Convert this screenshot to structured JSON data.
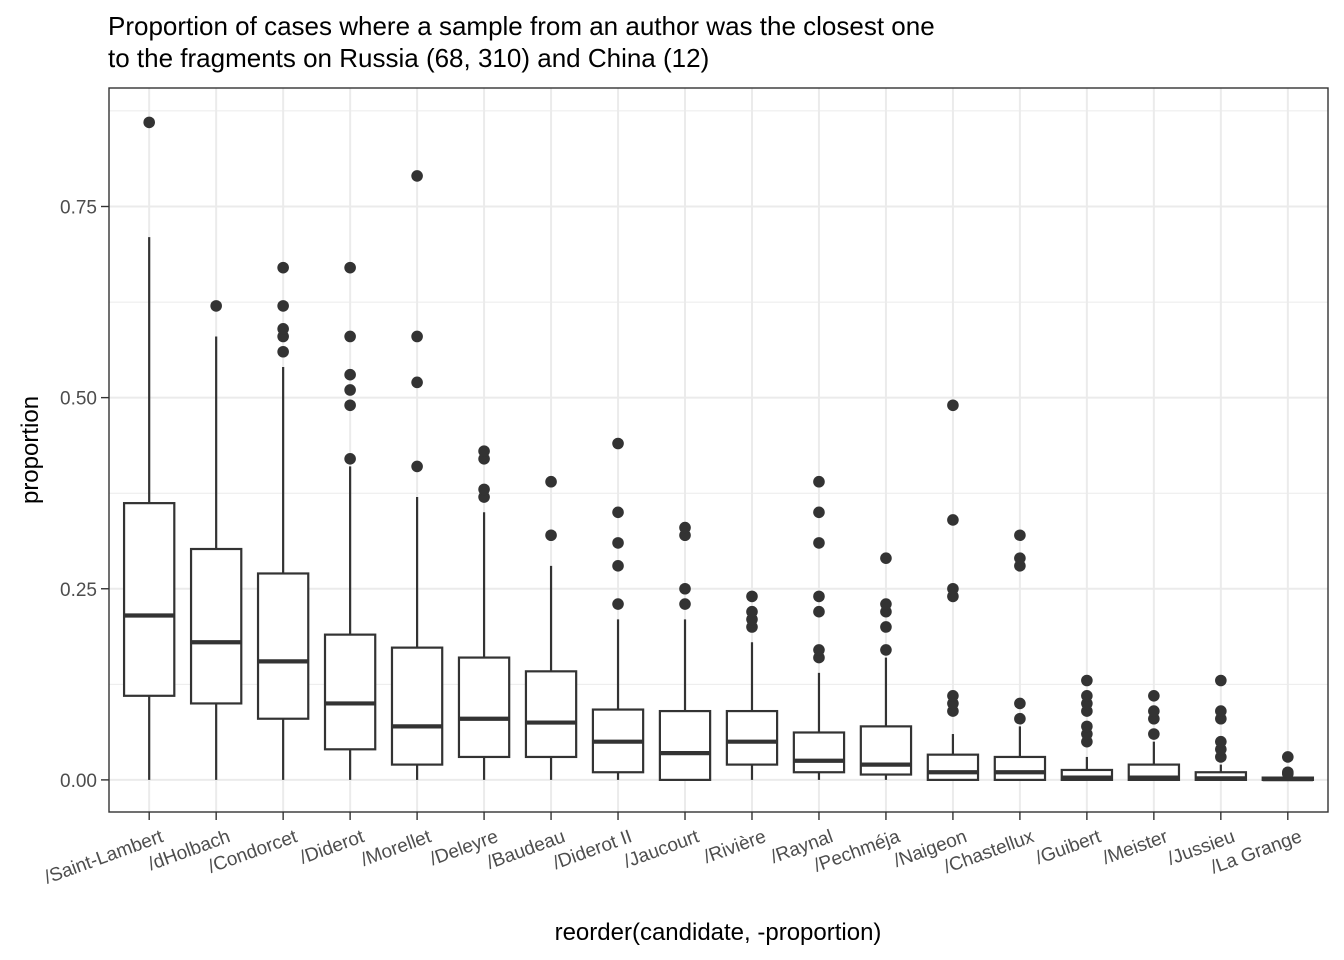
{
  "chart_data": {
    "type": "boxplot",
    "title_lines": [
      "Proportion of cases where a sample from an author was the closest one",
      "to the fragments on Russia (68, 310) and China (12)"
    ],
    "xlabel": "reorder(candidate, -proportion)",
    "ylabel": "proportion",
    "ylim": [
      -0.042,
      0.905
    ],
    "yticks": [
      0.0,
      0.25,
      0.5,
      0.75
    ],
    "ytick_labels": [
      "0.00",
      "0.25",
      "0.50",
      "0.75"
    ],
    "grid": true,
    "box_color": "#333333",
    "point_color": "#333333",
    "categories": [
      "/Saint-Lambert",
      "/dHolbach",
      "/Condorcet",
      "/Diderot",
      "/Morellet",
      "/Deleyre",
      "/Baudeau",
      "/Diderot II",
      "/Jaucourt",
      "/Rivière",
      "/Raynal",
      "/Pechméja",
      "/Naigeon",
      "/Chastellux",
      "/Guibert",
      "/Meister",
      "/Jussieu",
      "/La Grange"
    ],
    "boxes": [
      {
        "min": 0.0,
        "q1": 0.11,
        "median": 0.215,
        "q3": 0.362,
        "max": 0.71,
        "outliers": [
          0.86
        ]
      },
      {
        "min": 0.0,
        "q1": 0.1,
        "median": 0.18,
        "q3": 0.302,
        "max": 0.58,
        "outliers": [
          0.62
        ]
      },
      {
        "min": 0.0,
        "q1": 0.08,
        "median": 0.155,
        "q3": 0.27,
        "max": 0.54,
        "outliers": [
          0.56,
          0.58,
          0.59,
          0.62,
          0.67
        ]
      },
      {
        "min": 0.0,
        "q1": 0.04,
        "median": 0.1,
        "q3": 0.19,
        "max": 0.41,
        "outliers": [
          0.42,
          0.49,
          0.51,
          0.53,
          0.58,
          0.67
        ]
      },
      {
        "min": 0.0,
        "q1": 0.02,
        "median": 0.07,
        "q3": 0.173,
        "max": 0.37,
        "outliers": [
          0.41,
          0.52,
          0.58,
          0.79
        ]
      },
      {
        "min": 0.0,
        "q1": 0.03,
        "median": 0.08,
        "q3": 0.16,
        "max": 0.35,
        "outliers": [
          0.37,
          0.38,
          0.42,
          0.43
        ]
      },
      {
        "min": 0.0,
        "q1": 0.03,
        "median": 0.075,
        "q3": 0.142,
        "max": 0.28,
        "outliers": [
          0.32,
          0.39
        ]
      },
      {
        "min": 0.0,
        "q1": 0.01,
        "median": 0.05,
        "q3": 0.092,
        "max": 0.21,
        "outliers": [
          0.23,
          0.28,
          0.31,
          0.35,
          0.44
        ]
      },
      {
        "min": 0.0,
        "q1": 0.0,
        "median": 0.035,
        "q3": 0.09,
        "max": 0.21,
        "outliers": [
          0.23,
          0.25,
          0.32,
          0.33
        ]
      },
      {
        "min": 0.0,
        "q1": 0.02,
        "median": 0.05,
        "q3": 0.09,
        "max": 0.18,
        "outliers": [
          0.2,
          0.21,
          0.22,
          0.24
        ]
      },
      {
        "min": 0.0,
        "q1": 0.01,
        "median": 0.025,
        "q3": 0.062,
        "max": 0.14,
        "outliers": [
          0.16,
          0.17,
          0.22,
          0.24,
          0.31,
          0.35,
          0.39
        ]
      },
      {
        "min": 0.0,
        "q1": 0.007,
        "median": 0.02,
        "q3": 0.07,
        "max": 0.16,
        "outliers": [
          0.17,
          0.2,
          0.22,
          0.23,
          0.29
        ]
      },
      {
        "min": 0.0,
        "q1": 0.0,
        "median": 0.01,
        "q3": 0.033,
        "max": 0.06,
        "outliers": [
          0.09,
          0.1,
          0.11,
          0.24,
          0.25,
          0.34,
          0.49
        ]
      },
      {
        "min": 0.0,
        "q1": 0.0,
        "median": 0.01,
        "q3": 0.03,
        "max": 0.07,
        "outliers": [
          0.08,
          0.1,
          0.28,
          0.29,
          0.32
        ]
      },
      {
        "min": 0.0,
        "q1": 0.0,
        "median": 0.003,
        "q3": 0.013,
        "max": 0.03,
        "outliers": [
          0.05,
          0.06,
          0.07,
          0.09,
          0.1,
          0.11,
          0.13
        ]
      },
      {
        "min": 0.0,
        "q1": 0.0,
        "median": 0.003,
        "q3": 0.02,
        "max": 0.05,
        "outliers": [
          0.06,
          0.08,
          0.09,
          0.11
        ]
      },
      {
        "min": 0.0,
        "q1": 0.0,
        "median": 0.002,
        "q3": 0.01,
        "max": 0.02,
        "outliers": [
          0.03,
          0.04,
          0.05,
          0.08,
          0.09,
          0.13
        ]
      },
      {
        "min": 0.0,
        "q1": 0.0,
        "median": 0.001,
        "q3": 0.003,
        "max": 0.005,
        "outliers": [
          0.008,
          0.01,
          0.03
        ]
      }
    ]
  }
}
